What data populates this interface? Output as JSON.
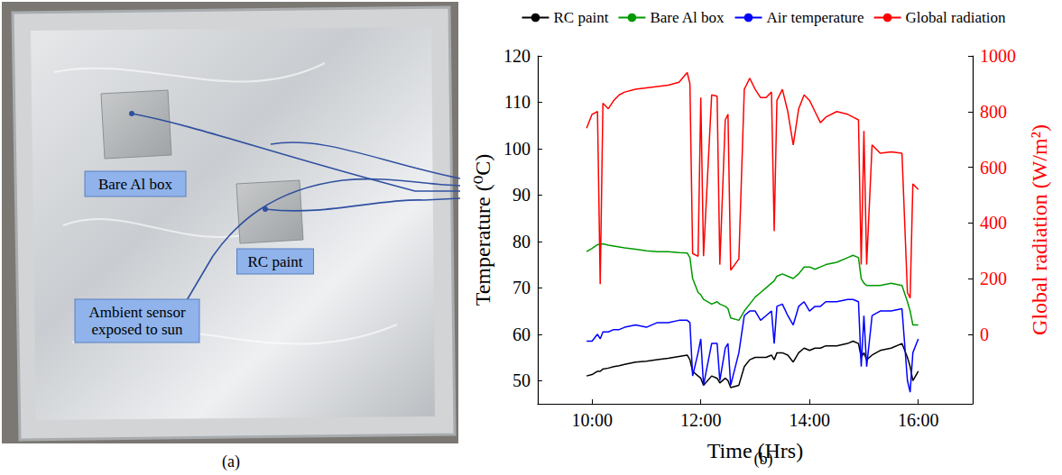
{
  "photo": {
    "panel_label": "(a)",
    "labels": [
      "Bare Al box",
      "RC paint",
      "Ambient sensor exposed to sun"
    ]
  },
  "chart_data": {
    "type": "line",
    "panel_label": "(b)",
    "x_label": "Time (Hrs)",
    "y_label": "Temperature (⁰C)",
    "y2_label": "Global radiation (W/m²)",
    "x": [
      9.9,
      10.0,
      10.1,
      10.15,
      10.2,
      10.3,
      10.4,
      10.5,
      10.6,
      10.8,
      11.0,
      11.2,
      11.4,
      11.6,
      11.75,
      11.8,
      11.85,
      11.95,
      12.0,
      12.05,
      12.2,
      12.3,
      12.35,
      12.45,
      12.5,
      12.55,
      12.7,
      12.8,
      12.9,
      13.0,
      13.1,
      13.2,
      13.3,
      13.35,
      13.4,
      13.5,
      13.6,
      13.7,
      13.8,
      13.9,
      14.0,
      14.1,
      14.2,
      14.3,
      14.5,
      14.7,
      14.8,
      14.9,
      14.95,
      15.0,
      15.05,
      15.15,
      15.3,
      15.5,
      15.7,
      15.8,
      15.85,
      15.9,
      16.0
    ],
    "xlim": [
      9,
      17
    ],
    "xticks": [
      {
        "value": 10,
        "label": "10:00"
      },
      {
        "value": 12,
        "label": "12:00"
      },
      {
        "value": 14,
        "label": "14:00"
      },
      {
        "value": 16,
        "label": "16:00"
      }
    ],
    "ylim": [
      45,
      120
    ],
    "yticks": [
      50,
      60,
      70,
      80,
      90,
      100,
      110,
      120
    ],
    "y2lim": [
      -250,
      1000
    ],
    "y2ticks": [
      0,
      200,
      400,
      600,
      800,
      1000
    ],
    "legend": "top",
    "grid": false,
    "series": [
      {
        "name": "RC paint",
        "color": "#000000",
        "values": [
          51,
          51.3,
          52,
          52,
          52.5,
          52.7,
          53,
          53.2,
          53.5,
          54,
          54.2,
          54.5,
          54.8,
          55.2,
          55.5,
          54.5,
          52,
          51,
          50.5,
          49,
          51,
          50.5,
          49.5,
          50.5,
          50,
          48.5,
          49,
          53,
          54.5,
          55,
          55,
          55,
          55.5,
          54.5,
          56,
          56,
          55.5,
          54,
          56,
          57,
          56.5,
          57,
          57,
          57.5,
          57.5,
          58,
          58.5,
          58,
          55,
          56,
          54.5,
          55.5,
          56.5,
          57,
          58,
          55,
          53,
          50,
          52
        ]
      },
      {
        "name": "Bare Al box",
        "color": "#009900",
        "values": [
          77.8,
          78.5,
          79.3,
          79.4,
          79.5,
          79.2,
          79.0,
          78.8,
          78.6,
          78.3,
          78.0,
          77.8,
          77.8,
          77.6,
          77.5,
          76.5,
          72,
          69,
          68.5,
          67.5,
          66.5,
          67,
          66.5,
          66,
          65.5,
          63.5,
          63,
          65,
          66.5,
          68,
          69,
          70,
          71,
          71.5,
          72.5,
          73,
          72.5,
          72,
          73,
          74.5,
          74.5,
          74,
          74.5,
          75,
          75.5,
          76.5,
          77,
          76.5,
          72,
          71,
          70.5,
          70.5,
          70.5,
          71,
          70.5,
          67,
          65,
          62,
          62
        ]
      },
      {
        "name": "Air temperature",
        "color": "#0000ff",
        "values": [
          58.5,
          58.5,
          60,
          59,
          60.5,
          60.5,
          61,
          61,
          61.5,
          62,
          61.5,
          62.5,
          62.5,
          63,
          63,
          62.5,
          51,
          56,
          59,
          49,
          58,
          58,
          50,
          57,
          58,
          49,
          56,
          64,
          65,
          65,
          63,
          64,
          65,
          58,
          66,
          66.5,
          64,
          62,
          66,
          67,
          65,
          66,
          66,
          67,
          67,
          67.5,
          67.5,
          67,
          53,
          64,
          53,
          64,
          65,
          65,
          65.5,
          50,
          47.5,
          56,
          59
        ]
      },
      {
        "name": "Global radiation",
        "color": "#ff0000",
        "axis": "y2",
        "values": [
          740,
          790,
          800,
          180,
          830,
          810,
          840,
          860,
          870,
          880,
          885,
          890,
          895,
          905,
          940,
          900,
          290,
          280,
          850,
          280,
          860,
          855,
          250,
          770,
          790,
          230,
          270,
          880,
          920,
          880,
          850,
          850,
          870,
          370,
          840,
          880,
          800,
          680,
          810,
          860,
          840,
          800,
          760,
          780,
          800,
          790,
          780,
          770,
          250,
          730,
          250,
          680,
          650,
          655,
          650,
          150,
          130,
          540,
          520
        ]
      }
    ]
  }
}
